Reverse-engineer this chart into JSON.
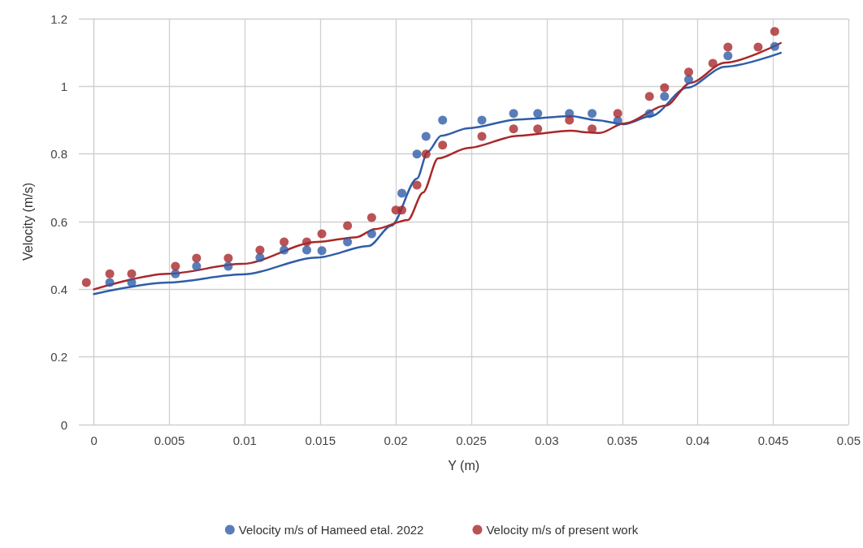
{
  "chart_data": {
    "type": "scatter",
    "xlabel": "Y (m)",
    "ylabel": "Velocity (m/s)",
    "xlim": [
      -0.001,
      0.05
    ],
    "xticks": [
      0,
      0.005,
      0.01,
      0.015,
      0.02,
      0.025,
      0.03,
      0.035,
      0.04,
      0.045,
      0.05
    ],
    "ylim": [
      0,
      1.2
    ],
    "yticks": [
      0,
      0.2,
      0.4,
      0.6,
      0.8,
      1,
      1.2
    ],
    "grid": true,
    "legend": "bottom",
    "series": [
      {
        "name": "Velocity m/s of Hameed etal. 2022",
        "marker": "circle",
        "color": "#2f5da8",
        "x": [
          0.00105,
          0.0025,
          0.0054,
          0.0068,
          0.0089,
          0.011,
          0.0126,
          0.0141,
          0.0151,
          0.0168,
          0.0184,
          0.0204,
          0.0214,
          0.022,
          0.0231,
          0.0257,
          0.0278,
          0.0294,
          0.0315,
          0.033,
          0.0347,
          0.0368,
          0.0378,
          0.0394,
          0.042,
          0.0451
        ],
        "values": [
          0.42,
          0.42,
          0.446,
          0.468,
          0.468,
          0.494,
          0.516,
          0.516,
          0.514,
          0.54,
          0.564,
          0.684,
          0.8,
          0.852,
          0.9,
          0.9,
          0.92,
          0.92,
          0.92,
          0.92,
          0.898,
          0.919,
          0.97,
          1.02,
          1.09,
          1.118
        ]
      },
      {
        "name": "Velocity m/s of present work",
        "marker": "circle",
        "color": "#a8282a",
        "x": [
          -0.0005,
          0.00105,
          0.0025,
          0.0054,
          0.0068,
          0.0089,
          0.011,
          0.0126,
          0.0141,
          0.0151,
          0.0168,
          0.0184,
          0.02,
          0.0204,
          0.0214,
          0.022,
          0.0231,
          0.0257,
          0.0278,
          0.0294,
          0.0315,
          0.033,
          0.0347,
          0.0368,
          0.0378,
          0.0394,
          0.041,
          0.042,
          0.044,
          0.0451
        ],
        "values": [
          0.42,
          0.446,
          0.446,
          0.468,
          0.492,
          0.492,
          0.516,
          0.54,
          0.54,
          0.564,
          0.588,
          0.612,
          0.634,
          0.634,
          0.708,
          0.8,
          0.826,
          0.852,
          0.874,
          0.874,
          0.9,
          0.874,
          0.92,
          0.97,
          0.996,
          1.042,
          1.068,
          1.116,
          1.116,
          1.162
        ]
      },
      {
        "type": "line",
        "marker": "none",
        "color": "#2f5da8",
        "x": [
          0,
          0.0049,
          0.0098,
          0.0148,
          0.0182,
          0.0197,
          0.0214,
          0.0221,
          0.023,
          0.0248,
          0.0281,
          0.0316,
          0.0333,
          0.0351,
          0.0369,
          0.0393,
          0.0418,
          0.0455
        ],
        "values": [
          0.386,
          0.42,
          0.444,
          0.494,
          0.528,
          0.588,
          0.727,
          0.806,
          0.854,
          0.876,
          0.902,
          0.912,
          0.9,
          0.888,
          0.912,
          0.996,
          1.058,
          1.099
        ]
      },
      {
        "type": "line",
        "marker": "none",
        "color": "#a8282a",
        "x": [
          0,
          0.0049,
          0.0098,
          0.0148,
          0.0174,
          0.0186,
          0.0208,
          0.0218,
          0.0228,
          0.0248,
          0.0281,
          0.0316,
          0.0327,
          0.0335,
          0.0351,
          0.0379,
          0.0395,
          0.0418,
          0.0455
        ],
        "values": [
          0.4,
          0.446,
          0.475,
          0.54,
          0.554,
          0.578,
          0.605,
          0.686,
          0.787,
          0.818,
          0.854,
          0.869,
          0.864,
          0.862,
          0.89,
          0.943,
          1.01,
          1.07,
          1.128
        ]
      }
    ]
  }
}
